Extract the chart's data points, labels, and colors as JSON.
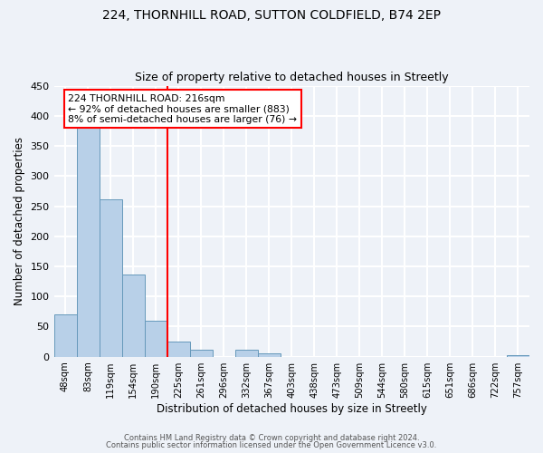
{
  "title1": "224, THORNHILL ROAD, SUTTON COLDFIELD, B74 2EP",
  "title2": "Size of property relative to detached houses in Streetly",
  "xlabel": "Distribution of detached houses by size in Streetly",
  "ylabel": "Number of detached properties",
  "bar_labels": [
    "48sqm",
    "83sqm",
    "119sqm",
    "154sqm",
    "190sqm",
    "225sqm",
    "261sqm",
    "296sqm",
    "332sqm",
    "367sqm",
    "403sqm",
    "438sqm",
    "473sqm",
    "509sqm",
    "544sqm",
    "580sqm",
    "615sqm",
    "651sqm",
    "686sqm",
    "722sqm",
    "757sqm"
  ],
  "bar_values": [
    70,
    380,
    262,
    137,
    60,
    25,
    11,
    0,
    11,
    5,
    0,
    0,
    0,
    0,
    0,
    0,
    0,
    0,
    0,
    0,
    3
  ],
  "bar_color": "#b8d0e8",
  "bar_edgecolor": "#6699bb",
  "ylim": [
    0,
    450
  ],
  "yticks": [
    0,
    50,
    100,
    150,
    200,
    250,
    300,
    350,
    400,
    450
  ],
  "property_label": "224 THORNHILL ROAD: 216sqm",
  "annotation_line1": "← 92% of detached houses are smaller (883)",
  "annotation_line2": "8% of semi-detached houses are larger (76) →",
  "footer1": "Contains HM Land Registry data © Crown copyright and database right 2024.",
  "footer2": "Contains public sector information licensed under the Open Government Licence v3.0.",
  "background_color": "#eef2f8",
  "grid_color": "#ffffff"
}
